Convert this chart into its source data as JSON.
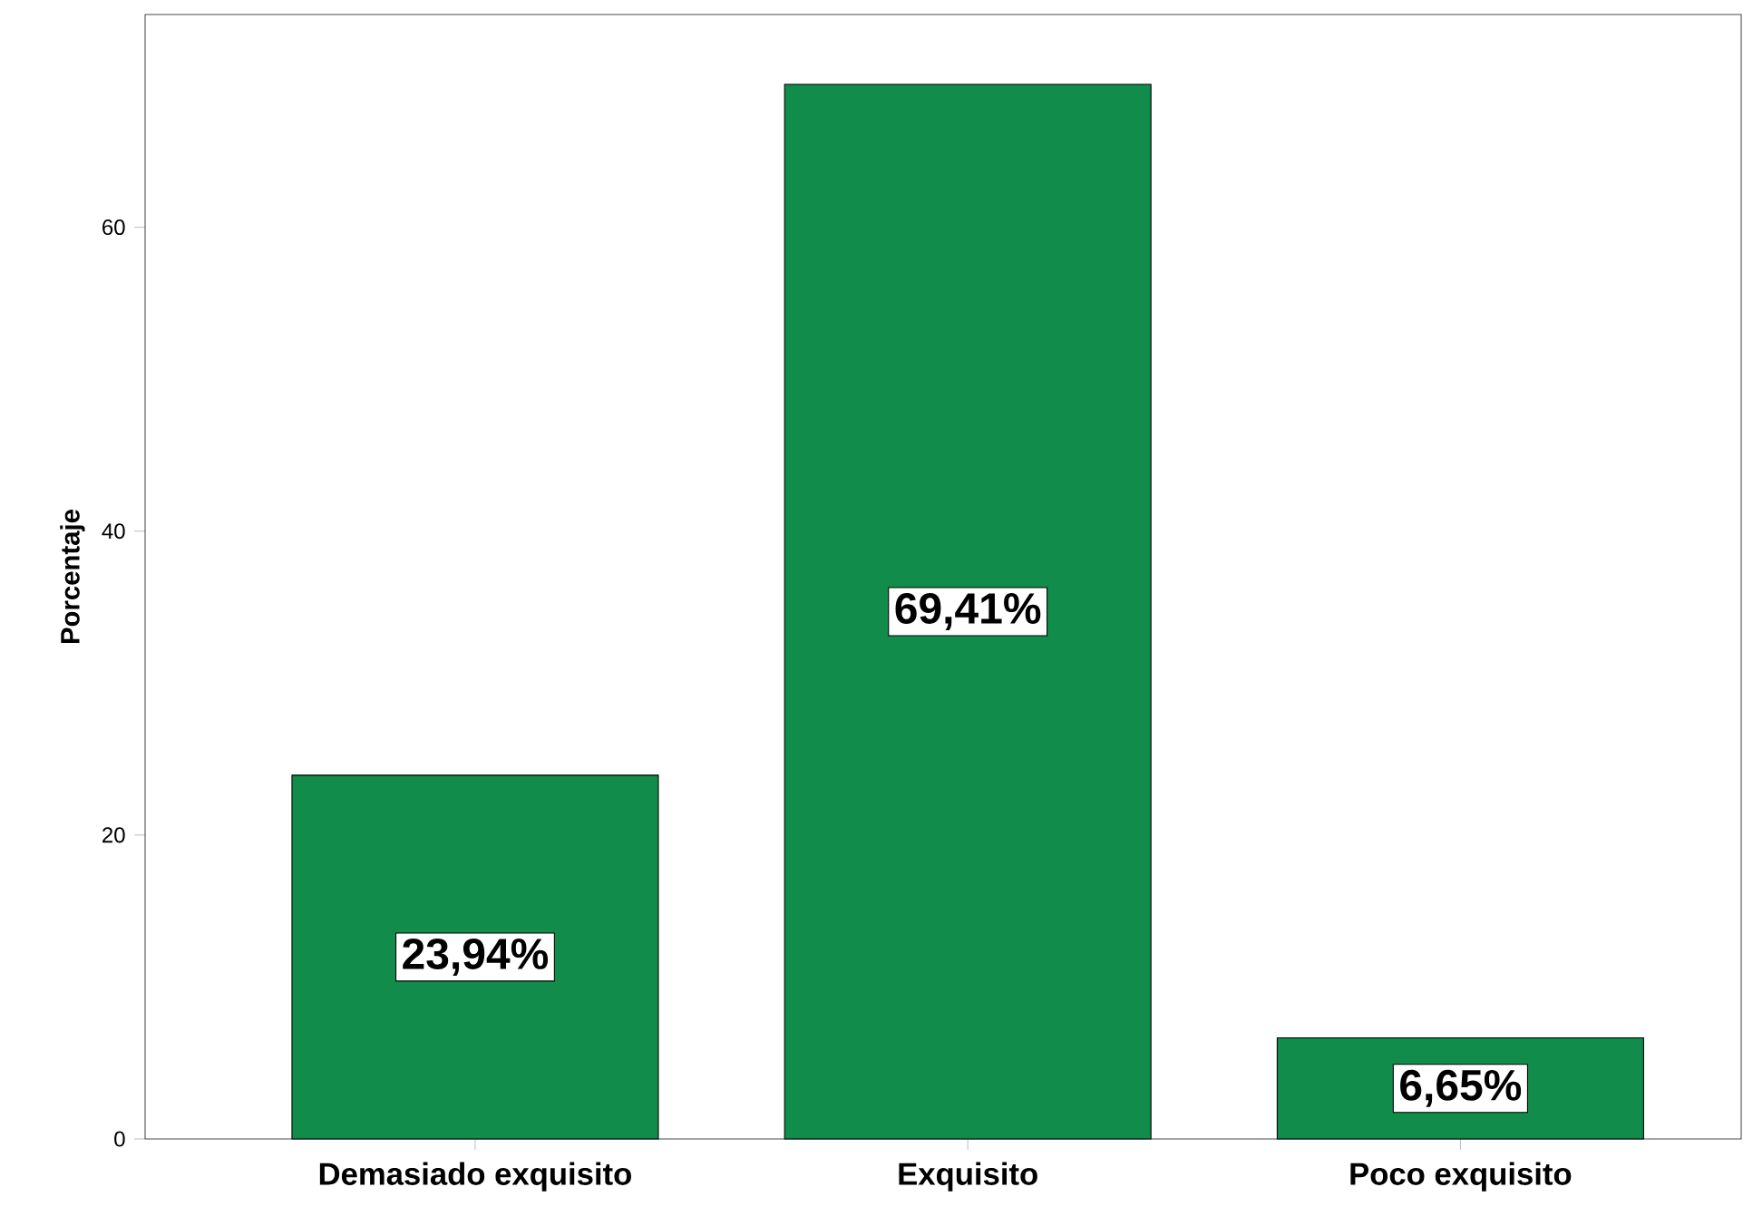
{
  "chart_data": {
    "type": "bar",
    "ylabel": "Porcentaje",
    "categories": [
      "Demasiado exquisito",
      "Exquisito",
      "Poco exquisito"
    ],
    "values": [
      23.94,
      69.41,
      6.65
    ],
    "value_labels": [
      "23,94%",
      "69,41%",
      "6,65%"
    ],
    "color": "#118c4a",
    "ylim": [
      0,
      74
    ],
    "yticks": [
      0,
      20,
      40,
      60
    ]
  }
}
